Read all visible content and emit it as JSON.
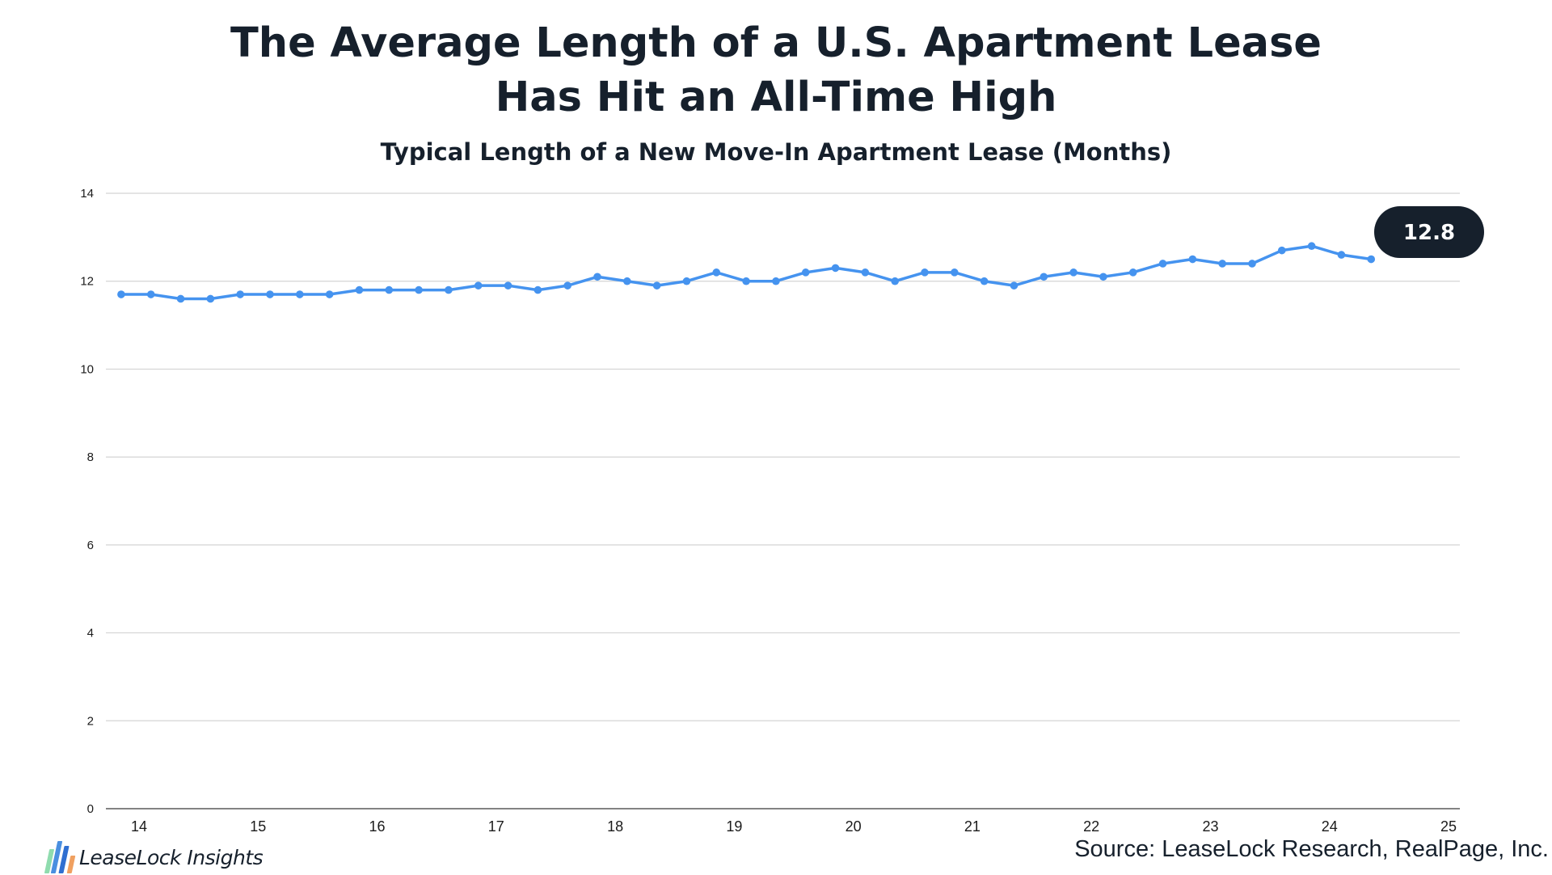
{
  "header": {
    "title_line1": "The Average Length of a U.S. Apartment Lease",
    "title_line2": "Has Hit an All-Time High",
    "subtitle": "Typical Length of a New Move-In Apartment Lease (Months)"
  },
  "footer": {
    "source": "Source: LeaseLock Research, RealPage, Inc.",
    "logo_text": "LeaseLock Insights"
  },
  "colors": {
    "line": "#4593ef",
    "grid": "#d4d4d4",
    "axis": "#5a5a5a",
    "callout_bg": "#16202c",
    "logo_bars": [
      "#8fdcae",
      "#4a8fe0",
      "#2f6fd1",
      "#f0a060"
    ]
  },
  "chart_data": {
    "type": "line",
    "title": "Typical Length of a New Move-In Apartment Lease (Months)",
    "xlabel": "",
    "ylabel": "",
    "x_ticks": [
      "14",
      "15",
      "16",
      "17",
      "18",
      "19",
      "20",
      "21",
      "22",
      "23",
      "24",
      "25"
    ],
    "x_range": [
      14,
      25
    ],
    "ylim": [
      0,
      14
    ],
    "y_ticks": [
      0,
      2,
      4,
      6,
      8,
      10,
      12,
      14
    ],
    "grid": true,
    "legend": "none",
    "series": [
      {
        "points_per_year": 4,
        "x_start": 13.85,
        "values": [
          11.7,
          11.7,
          11.6,
          11.6,
          11.7,
          11.7,
          11.7,
          11.7,
          11.8,
          11.8,
          11.8,
          11.8,
          11.9,
          11.9,
          11.8,
          11.9,
          12.1,
          12.0,
          11.9,
          12.0,
          12.2,
          12.0,
          12.0,
          12.2,
          12.3,
          12.2,
          12.0,
          12.2,
          12.2,
          12.0,
          11.9,
          12.1,
          12.2,
          12.1,
          12.2,
          12.4,
          12.5,
          12.4,
          12.4,
          12.7,
          12.8,
          12.6,
          12.5
        ]
      }
    ],
    "annotations": [
      {
        "text": "12.8",
        "position": "top-right"
      }
    ]
  }
}
